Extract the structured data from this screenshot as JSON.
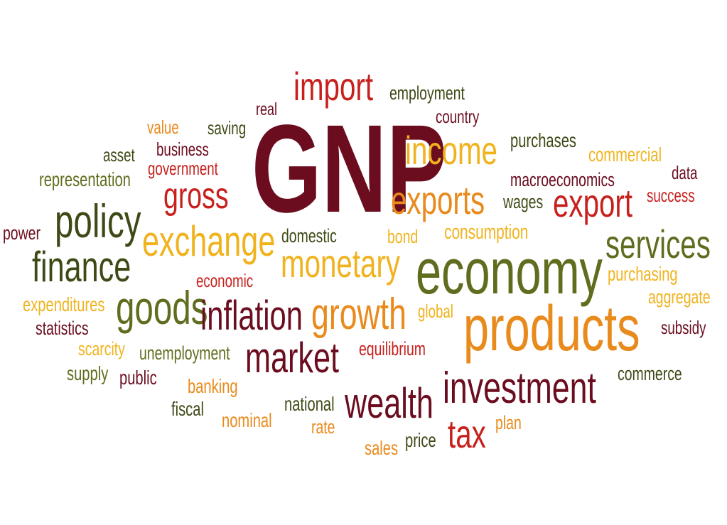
{
  "palette": {
    "maroon": "#6b0d1f",
    "red": "#c7201d",
    "orange": "#e98a1c",
    "yellow": "#f0b31d",
    "olive": "#5f6d1e",
    "dark_olive": "#3e4a16",
    "brown": "#8b4a13"
  },
  "words": [
    {
      "key": "gnp",
      "text": "GNP",
      "color": "maroon"
    },
    {
      "key": "import",
      "text": "import",
      "color": "red"
    },
    {
      "key": "employment",
      "text": "employment",
      "color": "dark_olive"
    },
    {
      "key": "country",
      "text": "country",
      "color": "maroon"
    },
    {
      "key": "real",
      "text": "real",
      "color": "maroon"
    },
    {
      "key": "value",
      "text": "value",
      "color": "orange"
    },
    {
      "key": "saving",
      "text": "saving",
      "color": "dark_olive"
    },
    {
      "key": "asset",
      "text": "asset",
      "color": "dark_olive"
    },
    {
      "key": "business",
      "text": "business",
      "color": "maroon"
    },
    {
      "key": "government",
      "text": "government",
      "color": "red"
    },
    {
      "key": "representation",
      "text": "representation",
      "color": "olive"
    },
    {
      "key": "gross",
      "text": "gross",
      "color": "red"
    },
    {
      "key": "income",
      "text": "income",
      "color": "yellow"
    },
    {
      "key": "purchases",
      "text": "purchases",
      "color": "dark_olive"
    },
    {
      "key": "commercial",
      "text": "commercial",
      "color": "yellow"
    },
    {
      "key": "data",
      "text": "data",
      "color": "maroon"
    },
    {
      "key": "macroeconomics",
      "text": "macroeconomics",
      "color": "maroon"
    },
    {
      "key": "success",
      "text": "success",
      "color": "red"
    },
    {
      "key": "exports",
      "text": "exports",
      "color": "orange"
    },
    {
      "key": "wages",
      "text": "wages",
      "color": "dark_olive"
    },
    {
      "key": "export",
      "text": "export",
      "color": "red"
    },
    {
      "key": "policy",
      "text": "policy",
      "color": "dark_olive"
    },
    {
      "key": "power",
      "text": "power",
      "color": "maroon"
    },
    {
      "key": "exchange",
      "text": "exchange",
      "color": "yellow"
    },
    {
      "key": "domestic",
      "text": "domestic",
      "color": "dark_olive"
    },
    {
      "key": "bond",
      "text": "bond",
      "color": "yellow"
    },
    {
      "key": "consumption",
      "text": "consumption",
      "color": "yellow"
    },
    {
      "key": "services",
      "text": "services",
      "color": "olive"
    },
    {
      "key": "finance",
      "text": "finance",
      "color": "dark_olive"
    },
    {
      "key": "monetary",
      "text": "monetary",
      "color": "yellow"
    },
    {
      "key": "economy",
      "text": "economy",
      "color": "olive"
    },
    {
      "key": "economic",
      "text": "economic",
      "color": "red"
    },
    {
      "key": "purchasing",
      "text": "purchasing",
      "color": "yellow"
    },
    {
      "key": "aggregate",
      "text": "aggregate",
      "color": "yellow"
    },
    {
      "key": "expenditures",
      "text": "expenditures",
      "color": "yellow"
    },
    {
      "key": "goods",
      "text": "goods",
      "color": "olive"
    },
    {
      "key": "inflation",
      "text": "inflation",
      "color": "maroon"
    },
    {
      "key": "growth",
      "text": "growth",
      "color": "orange"
    },
    {
      "key": "global",
      "text": "global",
      "color": "yellow"
    },
    {
      "key": "products",
      "text": "products",
      "color": "orange"
    },
    {
      "key": "subsidy",
      "text": "subsidy",
      "color": "maroon"
    },
    {
      "key": "statistics",
      "text": "statistics",
      "color": "maroon"
    },
    {
      "key": "scarcity",
      "text": "scarcity",
      "color": "yellow"
    },
    {
      "key": "unemployment",
      "text": "unemployment",
      "color": "olive"
    },
    {
      "key": "market",
      "text": "market",
      "color": "maroon"
    },
    {
      "key": "equilibrium",
      "text": "equilibrium",
      "color": "red"
    },
    {
      "key": "supply",
      "text": "supply",
      "color": "olive"
    },
    {
      "key": "public",
      "text": "public",
      "color": "maroon"
    },
    {
      "key": "banking",
      "text": "banking",
      "color": "orange"
    },
    {
      "key": "investment",
      "text": "investment",
      "color": "maroon"
    },
    {
      "key": "commerce",
      "text": "commerce",
      "color": "dark_olive"
    },
    {
      "key": "fiscal",
      "text": "fiscal",
      "color": "dark_olive"
    },
    {
      "key": "national",
      "text": "national",
      "color": "dark_olive"
    },
    {
      "key": "wealth",
      "text": "wealth",
      "color": "maroon"
    },
    {
      "key": "nominal",
      "text": "nominal",
      "color": "orange"
    },
    {
      "key": "rate",
      "text": "rate",
      "color": "orange"
    },
    {
      "key": "plan",
      "text": "plan",
      "color": "orange"
    },
    {
      "key": "tax",
      "text": "tax",
      "color": "red"
    },
    {
      "key": "sales",
      "text": "sales",
      "color": "orange"
    },
    {
      "key": "price",
      "text": "price",
      "color": "dark_olive"
    }
  ]
}
